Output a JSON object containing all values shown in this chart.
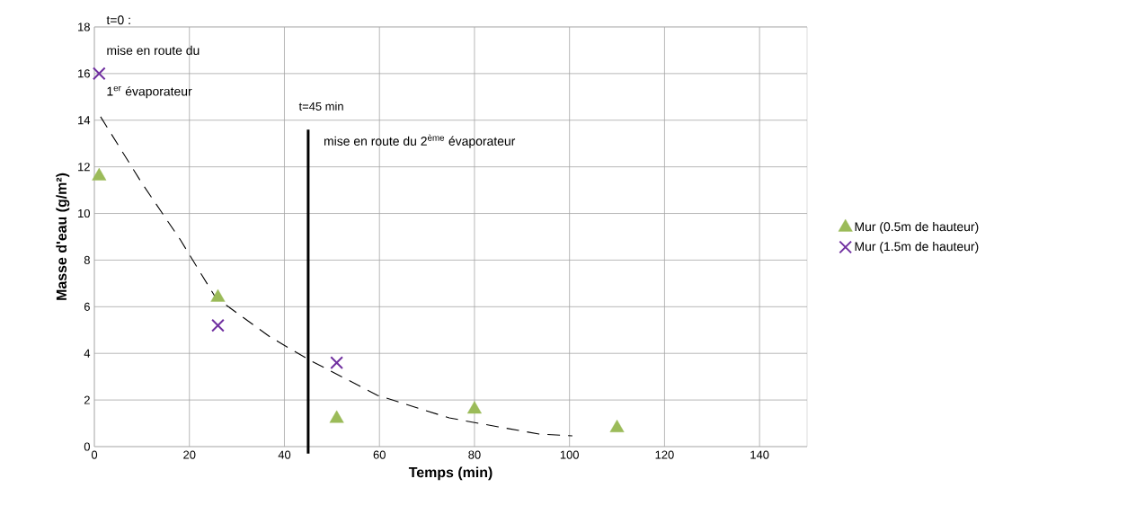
{
  "chart_data": {
    "type": "scatter",
    "xlabel": "Temps (min)",
    "ylabel": "Masse d'eau (g/m²)",
    "xlim": [
      0,
      150
    ],
    "ylim": [
      0,
      18
    ],
    "xticks": [
      0,
      20,
      40,
      60,
      80,
      100,
      120,
      140
    ],
    "yticks": [
      0,
      2,
      4,
      6,
      8,
      10,
      12,
      14,
      16,
      18
    ],
    "grid": true,
    "legend": "right",
    "series": [
      {
        "name": "Mur (0.5m de hauteur)",
        "color": "#9bbb59",
        "marker": "triangle",
        "x": [
          1,
          26,
          51,
          80,
          110
        ],
        "values": [
          11.6,
          6.4,
          1.2,
          1.6,
          0.8
        ]
      },
      {
        "name": "Mur (1.5m de hauteur)",
        "color": "#7030a0",
        "marker": "cross",
        "x": [
          1,
          26,
          51
        ],
        "values": [
          16,
          5.2,
          3.6
        ]
      },
      {
        "type": "line",
        "color": "#000000",
        "line_style": "dashed",
        "marker": "none",
        "x": [
          1.3,
          10,
          18,
          25.5,
          37,
          45.4,
          59.6,
          74.7,
          85,
          93.6,
          100.6
        ],
        "values": [
          14.15,
          11.3,
          8.9,
          6.4,
          4.7,
          3.7,
          2.2,
          1.23,
          0.85,
          0.54,
          0.46
        ]
      }
    ],
    "ref_lines": [
      {
        "axis": "x",
        "value": 45,
        "label": "t=45 min",
        "color": "#000000"
      }
    ],
    "annotations": [
      "t=0 :",
      "mise en route du",
      "1$^{er}$ évaporateur",
      "mise en route du 2$^{ème}$ évaporateur"
    ]
  }
}
